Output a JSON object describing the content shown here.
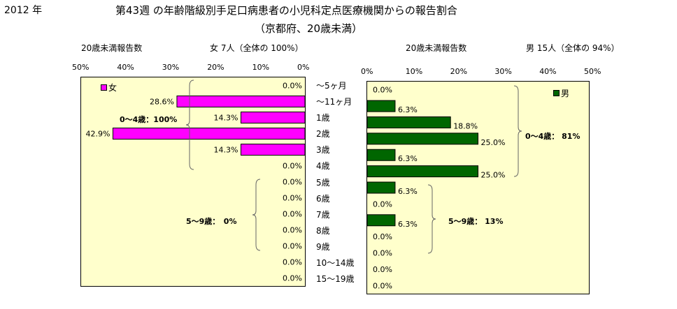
{
  "header": {
    "year": "2012 年",
    "title": "第43週 の年齢階級別手足口病患者の小児科定点医療機関からの報告割合",
    "subtitle": "（京都府、20歳未満）"
  },
  "left_panel": {
    "count_label": "20歳未満報告数",
    "total_label": "女 7人（全体の 100%）"
  },
  "right_panel": {
    "count_label": "20歳未満報告数",
    "total_label": "男 15人（全体の 94%）"
  },
  "colors": {
    "female": "#ff00ff",
    "male": "#006600",
    "plot_bg": "#ffffcc"
  },
  "chart_data": [
    {
      "type": "bar",
      "orientation": "horizontal",
      "direction": "right-to-left",
      "categories": [
        "～5ヶ月",
        "～11ヶ月",
        "1歳",
        "2歳",
        "3歳",
        "4歳",
        "5歳",
        "6歳",
        "7歳",
        "8歳",
        "9歳",
        "10～14歳",
        "15～19歳"
      ],
      "series": [
        {
          "name": "女",
          "values": [
            0.0,
            28.6,
            14.3,
            42.9,
            14.3,
            0.0,
            0.0,
            0.0,
            0.0,
            0.0,
            0.0,
            0.0,
            0.0
          ]
        }
      ],
      "value_labels": [
        "0.0%",
        "28.6%",
        "14.3%",
        "42.9%",
        "14.3%",
        "0.0%",
        "0.0%",
        "0.0%",
        "0.0%",
        "0.0%",
        "0.0%",
        "0.0%",
        "0.0%"
      ],
      "xlim": [
        0,
        50
      ],
      "ticks": [
        "50%",
        "40%",
        "30%",
        "20%",
        "10%",
        "0%"
      ],
      "legend": "top-left",
      "annotations": [
        "0～4歳：100%",
        "5～9歳：　0%"
      ]
    },
    {
      "type": "bar",
      "orientation": "horizontal",
      "direction": "left-to-right",
      "categories": [
        "～5ヶ月",
        "～11ヶ月",
        "1歳",
        "2歳",
        "3歳",
        "4歳",
        "5歳",
        "6歳",
        "7歳",
        "8歳",
        "9歳",
        "10～14歳",
        "15～19歳"
      ],
      "series": [
        {
          "name": "男",
          "values": [
            0.0,
            6.3,
            18.8,
            25.0,
            6.3,
            25.0,
            6.3,
            0.0,
            6.3,
            0.0,
            0.0,
            0.0,
            0.0
          ]
        }
      ],
      "value_labels": [
        "0.0%",
        "6.3%",
        "18.8%",
        "25.0%",
        "6.3%",
        "25.0%",
        "6.3%",
        "0.0%",
        "6.3%",
        "0.0%",
        "0.0%",
        "0.0%",
        "0.0%"
      ],
      "xlim": [
        0,
        50
      ],
      "ticks": [
        "0%",
        "10%",
        "20%",
        "30%",
        "40%",
        "50%"
      ],
      "legend": "top-right",
      "annotations": [
        "0～4歳： 81%",
        "5～9歳： 13%"
      ]
    }
  ]
}
